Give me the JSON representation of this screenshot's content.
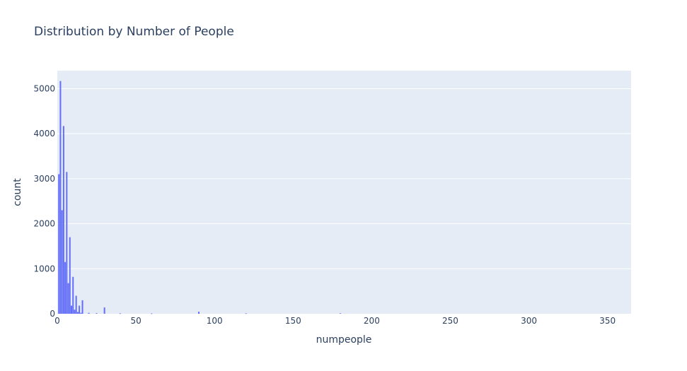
{
  "chart_data": {
    "type": "bar",
    "title": "Distribution by Number of People",
    "xlabel": "numpeople",
    "ylabel": "count",
    "xlim": [
      0,
      365
    ],
    "ylim": [
      0,
      5400
    ],
    "x_ticks": [
      "0",
      "50",
      "100",
      "150",
      "200",
      "250",
      "300",
      "350"
    ],
    "x_tick_values": [
      0,
      50,
      100,
      150,
      200,
      250,
      300,
      350
    ],
    "y_ticks": [
      "0",
      "1000",
      "2000",
      "3000",
      "4000",
      "5000"
    ],
    "y_tick_values": [
      0,
      1000,
      2000,
      3000,
      4000,
      5000
    ],
    "grid": true,
    "colors": {
      "bar": "#636efa",
      "plot_bg": "#e5ecf6",
      "grid": "#ffffff",
      "text": "#2a3f5f"
    },
    "series": [
      {
        "x": [
          1,
          2,
          3,
          4,
          5,
          6,
          7,
          8,
          9,
          10,
          11,
          12,
          13,
          14,
          15,
          16,
          20,
          25,
          30,
          40,
          60,
          90,
          120,
          180
        ],
        "y": [
          3100,
          5170,
          2300,
          4170,
          1150,
          3150,
          680,
          1700,
          180,
          820,
          90,
          400,
          40,
          180,
          20,
          300,
          20,
          15,
          140,
          10,
          8,
          45,
          10,
          12
        ]
      }
    ]
  }
}
